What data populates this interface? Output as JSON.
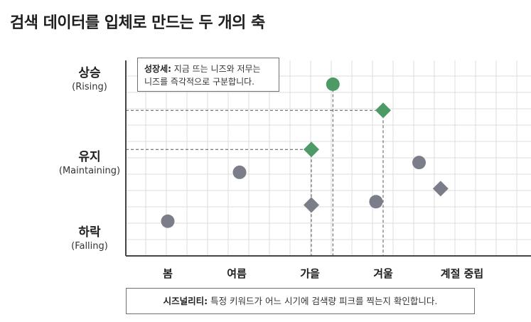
{
  "title": "검색 데이터를 입체로 만드는 두 개의 축",
  "y_axis": [
    {
      "label": "상승",
      "sub": "(Rising)"
    },
    {
      "label": "유지",
      "sub": "(Maintaining)"
    },
    {
      "label": "하락",
      "sub": "(Falling)"
    }
  ],
  "x_axis": [
    "봄",
    "여름",
    "가을",
    "겨울",
    "계절 중립"
  ],
  "callout": {
    "term": "성장세:",
    "text_line1": " 지금 뜨는 니즈와 저무는",
    "text_line2": "니즈를 즉각적으로 구분합니다."
  },
  "footer": {
    "term": "시즈널리티:",
    "text": " 특정 키워드가 어느 시기에 검색량 피크를 찍는지 확인합니다."
  },
  "colors": {
    "highlight": "#4e9a67",
    "neutral": "#7b7e88",
    "grid": "#dcdcdc",
    "axis": "#444444"
  },
  "chart_data": {
    "type": "scatter",
    "categories": [
      "봄",
      "여름",
      "가을",
      "겨울",
      "계절 중립"
    ],
    "y_levels": [
      "하락",
      "유지",
      "상승"
    ],
    "points": [
      {
        "x": 1,
        "y": 0.8,
        "shape": "circle",
        "highlight": false
      },
      {
        "x": 2,
        "y": 2.3,
        "shape": "circle",
        "highlight": false
      },
      {
        "x": 3.3,
        "y": 5.0,
        "shape": "circle",
        "highlight": true
      },
      {
        "x": 3,
        "y": 3.0,
        "shape": "diamond",
        "highlight": true
      },
      {
        "x": 3,
        "y": 1.3,
        "shape": "diamond",
        "highlight": false
      },
      {
        "x": 4,
        "y": 4.2,
        "shape": "diamond",
        "highlight": true
      },
      {
        "x": 3.9,
        "y": 1.4,
        "shape": "circle",
        "highlight": false
      },
      {
        "x": 4.5,
        "y": 2.6,
        "shape": "circle",
        "highlight": false
      },
      {
        "x": 4.8,
        "y": 1.8,
        "shape": "diamond",
        "highlight": false
      }
    ],
    "xlim": [
      0.4,
      5.5
    ],
    "ylim": [
      0,
      5.3
    ],
    "grid": true
  }
}
